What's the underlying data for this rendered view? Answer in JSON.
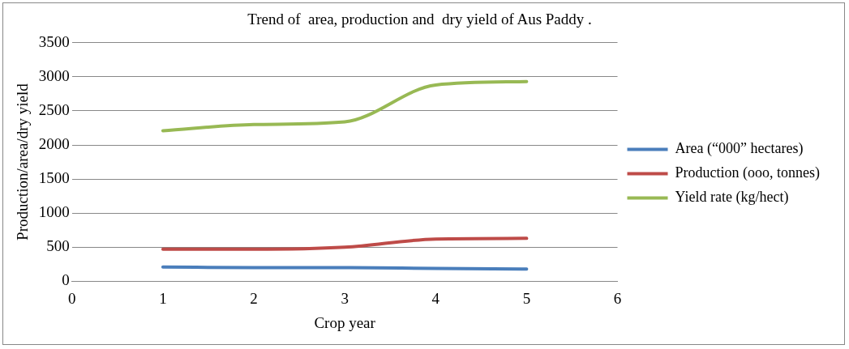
{
  "chart_data": {
    "type": "line",
    "title": "Trend of  area, production and  dry yield of Aus Paddy .",
    "xlabel": "Crop year",
    "ylabel": "Production/area/dry yield",
    "x": [
      1,
      2,
      3,
      4,
      5
    ],
    "series": [
      {
        "name": "Area (“000” hectares)",
        "color": "#4a7ebb",
        "values": [
          210,
          200,
          200,
          190,
          180
        ]
      },
      {
        "name": "Production (ooo, tonnes)",
        "color": "#be4b48",
        "values": [
          470,
          470,
          500,
          620,
          630
        ]
      },
      {
        "name": "Yield rate (kg/hect)",
        "color": "#98b954",
        "values": [
          2210,
          2300,
          2340,
          2880,
          2930
        ]
      }
    ],
    "xlim": [
      0,
      6
    ],
    "xticks": [
      0,
      1,
      2,
      3,
      4,
      5,
      6
    ],
    "ylim": [
      0,
      3500
    ],
    "yticks": [
      0,
      500,
      1000,
      1500,
      2000,
      2500,
      3000,
      3500
    ],
    "grid": "y",
    "legend": "right",
    "marker": "none",
    "line_style": "solid"
  }
}
